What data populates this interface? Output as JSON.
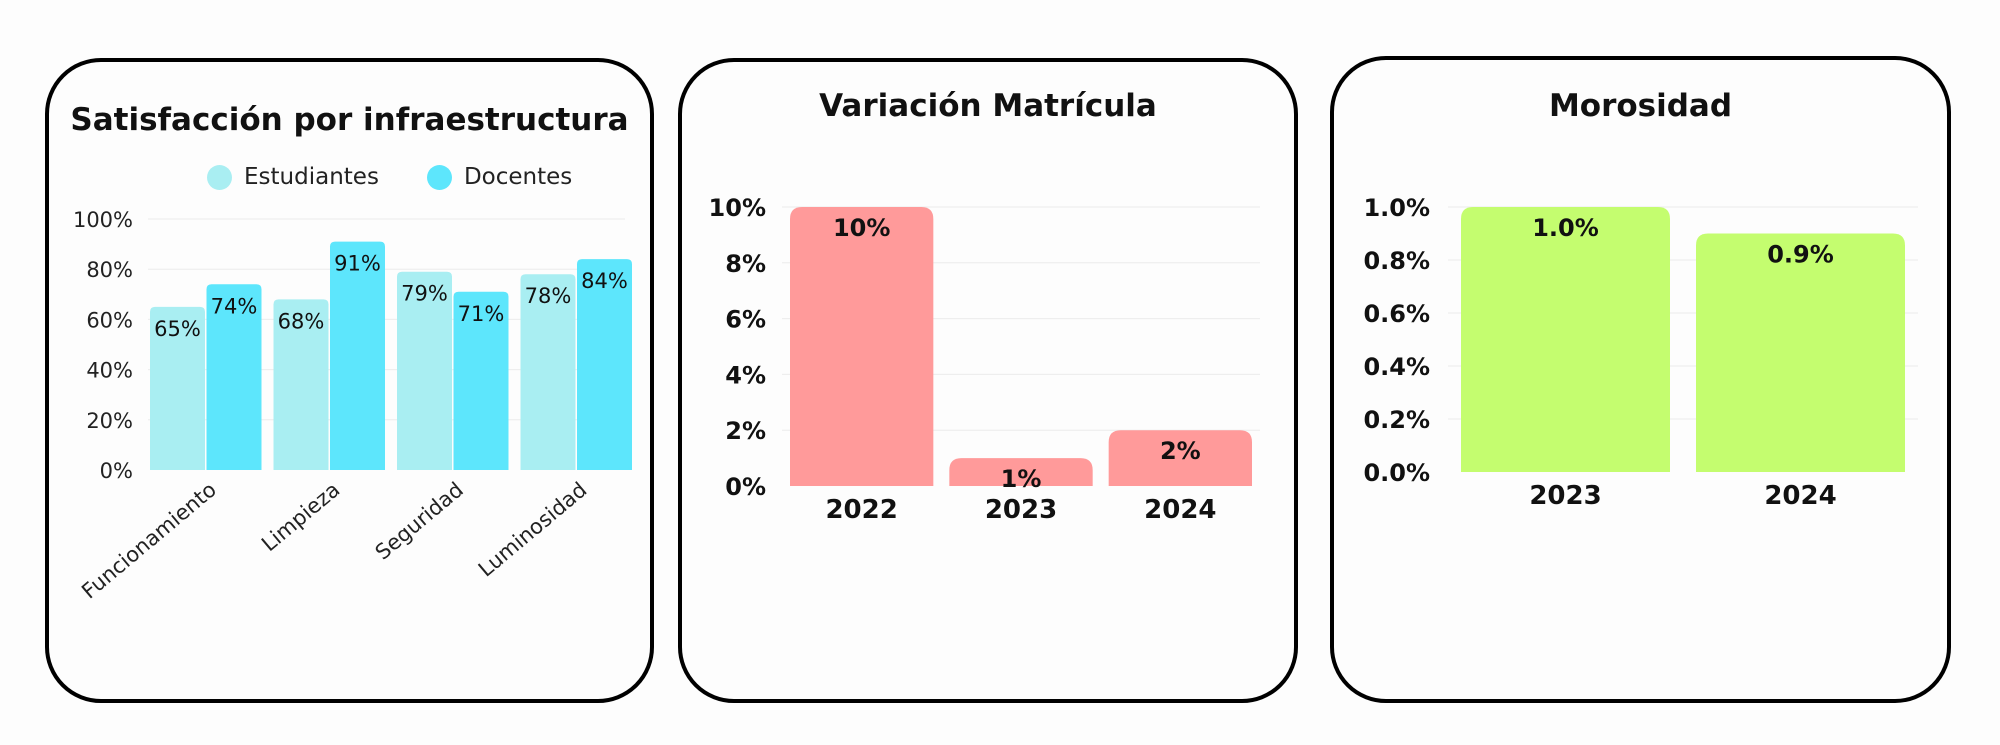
{
  "chart_data": [
    {
      "type": "bar",
      "title": "Satisfacción por infraestructura",
      "categories": [
        "Funcionamiento",
        "Limpieza",
        "Seguridad",
        "Luminosidad"
      ],
      "series": [
        {
          "name": "Estudiantes",
          "values": [
            65,
            68,
            79,
            78
          ],
          "labels": [
            "65%",
            "68%",
            "79%",
            "78%"
          ],
          "color": "#a9eef2"
        },
        {
          "name": "Docentes",
          "values": [
            74,
            91,
            71,
            84
          ],
          "labels": [
            "74%",
            "91%",
            "71%",
            "84%"
          ],
          "color": "#5de6fc"
        }
      ],
      "ylim": [
        0,
        100
      ],
      "yticks": [
        0,
        20,
        40,
        60,
        80,
        100
      ],
      "ytick_labels": [
        "0%",
        "20%",
        "40%",
        "60%",
        "80%",
        "100%"
      ],
      "legend": "top",
      "grid": true
    },
    {
      "type": "bar",
      "title": "Variación Matrícula",
      "categories": [
        "2022",
        "2023",
        "2024"
      ],
      "values": [
        10,
        1,
        2
      ],
      "labels": [
        "10%",
        "1%",
        "2%"
      ],
      "color": "#ff9a9a",
      "ylim": [
        0,
        10
      ],
      "yticks": [
        0,
        2,
        4,
        6,
        8,
        10
      ],
      "ytick_labels": [
        "0%",
        "2%",
        "4%",
        "6%",
        "8%",
        "10%"
      ],
      "grid": true
    },
    {
      "type": "bar",
      "title": "Morosidad",
      "categories": [
        "2023",
        "2024"
      ],
      "values": [
        1.0,
        0.9
      ],
      "labels": [
        "1.0%",
        "0.9%"
      ],
      "color": "#c4fd6f",
      "ylim": [
        0,
        1.0
      ],
      "yticks": [
        0,
        0.2,
        0.4,
        0.6,
        0.8,
        1.0
      ],
      "ytick_labels": [
        "0.0%",
        "0.2%",
        "0.4%",
        "0.6%",
        "0.8%",
        "1.0%"
      ],
      "grid": true
    }
  ]
}
